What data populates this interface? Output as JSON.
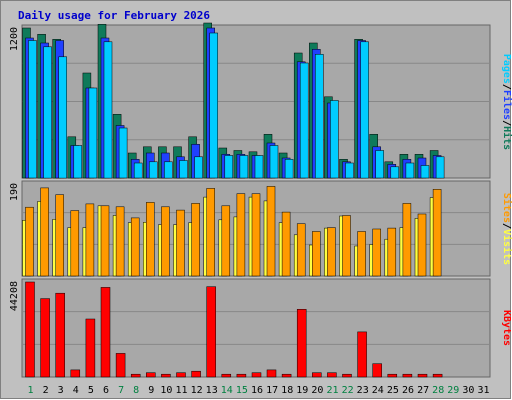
{
  "chart_data": {
    "type": "bar",
    "title": "Daily usage for February 2026",
    "days": [
      "1",
      "2",
      "3",
      "4",
      "5",
      "6",
      "7",
      "8",
      "9",
      "10",
      "11",
      "12",
      "13",
      "14",
      "15",
      "16",
      "17",
      "18",
      "19",
      "20",
      "21",
      "22",
      "23",
      "24",
      "25",
      "26",
      "27",
      "28",
      "29",
      "30",
      "31"
    ],
    "weekend_days": [
      "1",
      "7",
      "8",
      "14",
      "15",
      "21",
      "22",
      "28",
      "29"
    ],
    "colors": {
      "hits": "#0f7a5a",
      "files": "#2040ff",
      "pages": "#00ccff",
      "visits": "#ff9a00",
      "sites": "#ffff40",
      "kbytes": "#ff0000",
      "weekend_label": "#008040",
      "weekday_label": "#000000",
      "panel": "#c0c0c0",
      "plot": "#a8a8a8",
      "gridline": "#888888"
    },
    "panels": [
      {
        "id": "hits-files-pages",
        "ymax_label": "1200",
        "ylim": [
          0,
          1200
        ],
        "legend": [
          {
            "label": "Pages",
            "color": "#00ccff"
          },
          {
            "label": "/",
            "color": "#000000"
          },
          {
            "label": "Files",
            "color": "#2040ff"
          },
          {
            "label": "/",
            "color": "#000000"
          },
          {
            "label": "Hits",
            "color": "#0f7a5a"
          }
        ],
        "series": [
          {
            "key": "hits",
            "color": "#0f7a5a",
            "values": [
              1200,
              1150,
              1110,
              330,
              840,
              1230,
              510,
              200,
              250,
              250,
              250,
              330,
              1240,
              240,
              220,
              210,
              350,
              200,
              1000,
              1080,
              650,
              150,
              1110,
              350,
              130,
              190,
              190,
              220,
              null,
              null,
              null
            ]
          },
          {
            "key": "files",
            "color": "#2040ff",
            "values": [
              1120,
              1080,
              1100,
              260,
              720,
              1120,
              420,
              150,
              200,
              200,
              170,
              270,
              1200,
              190,
              190,
              180,
              280,
              160,
              930,
              1030,
              600,
              130,
              1100,
              250,
              110,
              150,
              160,
              180,
              null,
              null,
              null
            ]
          },
          {
            "key": "pages",
            "color": "#00ccff",
            "values": [
              1100,
              1050,
              970,
              260,
              720,
              1090,
              400,
              120,
              130,
              130,
              140,
              170,
              1160,
              180,
              180,
              180,
              260,
              150,
              920,
              990,
              620,
              120,
              1090,
              220,
              90,
              120,
              100,
              170,
              null,
              null,
              null
            ]
          }
        ]
      },
      {
        "id": "visits-sites",
        "ymax_label": "190",
        "ylim": [
          0,
          190
        ],
        "legend": [
          {
            "label": "Sites",
            "color": "#ff9a00"
          },
          {
            "label": "/",
            "color": "#000000"
          },
          {
            "label": "Visits",
            "color": "#ffff40"
          }
        ],
        "series": [
          {
            "key": "sites",
            "color": "#ffff40",
            "values": [
              115,
              154,
              117,
              100,
              100,
              145,
              125,
              110,
              111,
              106,
              106,
              110,
              163,
              116,
              122,
              163,
              155,
              110,
              85,
              64,
              99,
              124,
              62,
              65,
              76,
              100,
              119,
              162,
              null,
              null,
              null
            ]
          },
          {
            "key": "visits",
            "color": "#ff9a00",
            "values": [
              142,
              182,
              168,
              135,
              149,
              145,
              143,
              120,
              152,
              143,
              136,
              150,
              181,
              145,
              170,
              170,
              185,
              132,
              108,
              92,
              100,
              125,
              92,
              97,
              99,
              150,
              128,
              179,
              null,
              null,
              null
            ]
          }
        ]
      },
      {
        "id": "kbytes",
        "ymax_label": "44208",
        "ylim": [
          0,
          44208
        ],
        "legend": [
          {
            "label": "KBytes",
            "color": "#ff0000"
          }
        ],
        "series": [
          {
            "key": "kbytes",
            "color": "#ff0000",
            "values": [
              44200,
              36500,
              39000,
              3300,
              27000,
              41700,
              11000,
              1300,
              2000,
              1300,
              2000,
              2700,
              42000,
              1300,
              1300,
              2000,
              3300,
              1300,
              31500,
              2000,
              2000,
              1300,
              21000,
              6200,
              1300,
              1300,
              1300,
              1300,
              null,
              null,
              null
            ]
          }
        ]
      }
    ]
  }
}
